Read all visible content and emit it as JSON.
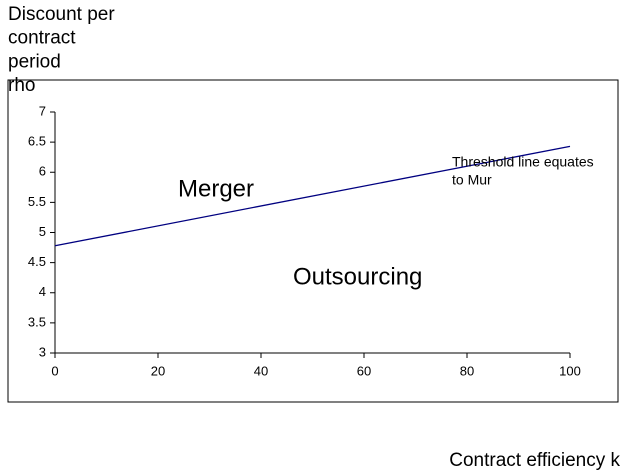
{
  "chart_data": {
    "type": "line",
    "y_label": [
      "Discount per",
      "contract",
      "period",
      "rho"
    ],
    "x_label": "Contract efficiency k",
    "x": [
      0,
      100
    ],
    "series": [
      {
        "values": [
          4.78,
          6.43
        ],
        "color": "#000080"
      }
    ],
    "xlim": [
      0,
      100
    ],
    "xticks": [
      0,
      20,
      40,
      60,
      80,
      100
    ],
    "ylim": [
      3,
      7
    ],
    "yticks": [
      3,
      3.5,
      4,
      4.5,
      5,
      5.5,
      6,
      6.5,
      7
    ],
    "grid": false,
    "annotations": [
      {
        "lines": [
          "Merger"
        ]
      },
      {
        "lines": [
          "Outsourcing"
        ]
      },
      {
        "lines": [
          "Threshold line equates",
          "to Mur"
        ]
      }
    ]
  }
}
